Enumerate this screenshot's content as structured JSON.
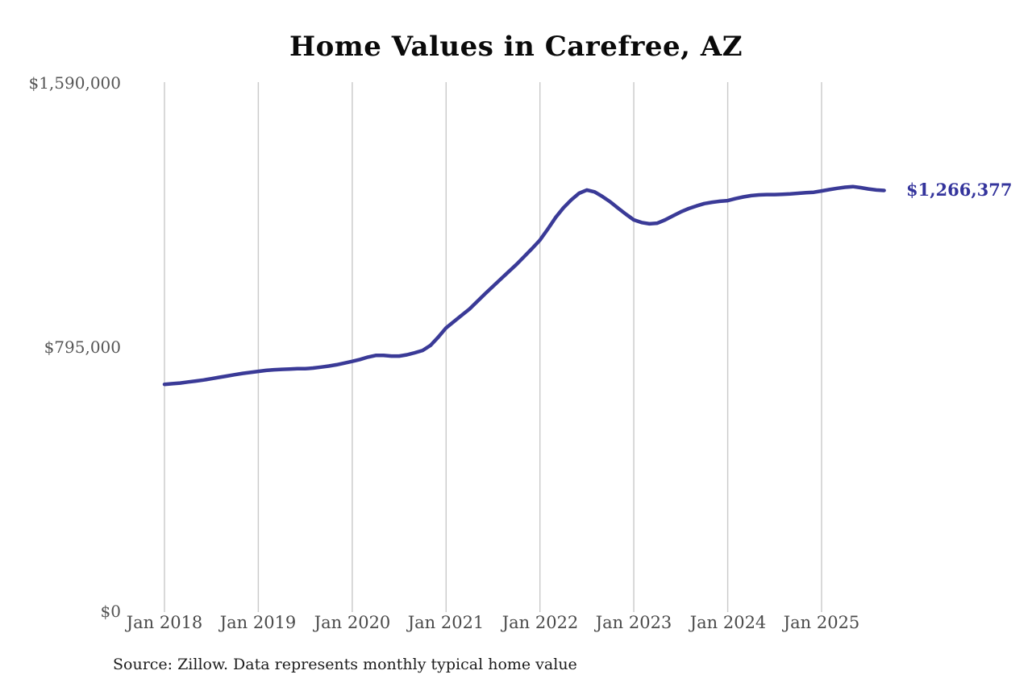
{
  "page": {
    "background_color": "#ffffff"
  },
  "chart": {
    "title": "Home Values in Carefree, AZ",
    "end_label": "$1,266,377",
    "source": "Source: Zillow. Data represents monthly typical home value"
  },
  "chart_data": {
    "type": "line",
    "title": "Home Values in Carefree, AZ",
    "xlabel": "",
    "ylabel": "",
    "ylim": [
      0,
      1590000
    ],
    "grid": "vertical-only",
    "legend": "none",
    "line_color": "#3a3a97",
    "label_color": "#34349c",
    "grid_color": "#c9c9c9",
    "yticks": [
      {
        "value": 0,
        "label": "$0"
      },
      {
        "value": 795000,
        "label": "$795,000"
      },
      {
        "value": 1590000,
        "label": "$1,590,000"
      }
    ],
    "xticks": [
      {
        "month_index": 0,
        "label": "Jan 2018"
      },
      {
        "month_index": 12,
        "label": "Jan 2019"
      },
      {
        "month_index": 24,
        "label": "Jan 2020"
      },
      {
        "month_index": 36,
        "label": "Jan 2021"
      },
      {
        "month_index": 48,
        "label": "Jan 2022"
      },
      {
        "month_index": 60,
        "label": "Jan 2023"
      },
      {
        "month_index": 72,
        "label": "Jan 2024"
      },
      {
        "month_index": 84,
        "label": "Jan 2025"
      }
    ],
    "end_annotation": {
      "text": "$1,266,377",
      "value": 1266377,
      "month": "2025-09"
    },
    "source_note": "Source: Zillow. Data represents monthly typical home value",
    "series": [
      {
        "name": "Monthly typical home value",
        "months": [
          "2018-01",
          "2018-02",
          "2018-03",
          "2018-04",
          "2018-05",
          "2018-06",
          "2018-07",
          "2018-08",
          "2018-09",
          "2018-10",
          "2018-11",
          "2018-12",
          "2019-01",
          "2019-02",
          "2019-03",
          "2019-04",
          "2019-05",
          "2019-06",
          "2019-07",
          "2019-08",
          "2019-09",
          "2019-10",
          "2019-11",
          "2019-12",
          "2020-01",
          "2020-02",
          "2020-03",
          "2020-04",
          "2020-05",
          "2020-06",
          "2020-07",
          "2020-08",
          "2020-09",
          "2020-10",
          "2020-11",
          "2020-12",
          "2021-01",
          "2021-02",
          "2021-03",
          "2021-04",
          "2021-05",
          "2021-06",
          "2021-07",
          "2021-08",
          "2021-09",
          "2021-10",
          "2021-11",
          "2021-12",
          "2022-01",
          "2022-02",
          "2022-03",
          "2022-04",
          "2022-05",
          "2022-06",
          "2022-07",
          "2022-08",
          "2022-09",
          "2022-10",
          "2022-11",
          "2022-12",
          "2023-01",
          "2023-02",
          "2023-03",
          "2023-04",
          "2023-05",
          "2023-06",
          "2023-07",
          "2023-08",
          "2023-09",
          "2023-10",
          "2023-11",
          "2023-12",
          "2024-01",
          "2024-02",
          "2024-03",
          "2024-04",
          "2024-05",
          "2024-06",
          "2024-07",
          "2024-08",
          "2024-09",
          "2024-10",
          "2024-11",
          "2024-12",
          "2025-01",
          "2025-02",
          "2025-03",
          "2025-04",
          "2025-05",
          "2025-06",
          "2025-07",
          "2025-08",
          "2025-09"
        ],
        "values": [
          683000,
          685000,
          687000,
          690000,
          693000,
          696000,
          700000,
          704000,
          708000,
          712000,
          716000,
          719000,
          722000,
          725000,
          727000,
          728000,
          729000,
          730000,
          730000,
          732000,
          735000,
          738000,
          742000,
          747000,
          752000,
          758000,
          765000,
          770000,
          770000,
          768000,
          768000,
          772000,
          778000,
          785000,
          800000,
          825000,
          853000,
          872000,
          891000,
          910000,
          933000,
          956000,
          978000,
          1000000,
          1022000,
          1044000,
          1068000,
          1092000,
          1117000,
          1150000,
          1185000,
          1214000,
          1238000,
          1258000,
          1268000,
          1262000,
          1248000,
          1232000,
          1213000,
          1195000,
          1178000,
          1170000,
          1166000,
          1168000,
          1178000,
          1190000,
          1202000,
          1212000,
          1220000,
          1227000,
          1231000,
          1234000,
          1236000,
          1242000,
          1247000,
          1251000,
          1253000,
          1254000,
          1254000,
          1255000,
          1256000,
          1258000,
          1260000,
          1261000,
          1265000,
          1269000,
          1273000,
          1276000,
          1278000,
          1275000,
          1271000,
          1268000,
          1266377
        ]
      }
    ]
  }
}
